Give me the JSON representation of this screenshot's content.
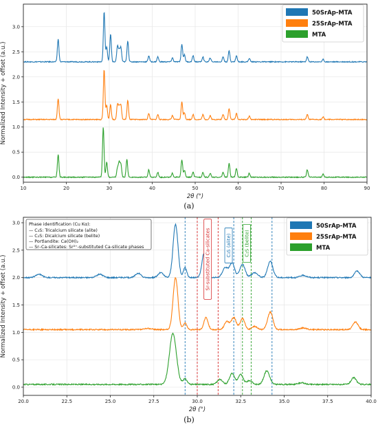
{
  "captions": {
    "a": "(a)",
    "b": "(b)"
  },
  "colors": {
    "s50": "#1f77b4",
    "s25": "#ff7f0e",
    "mta": "#2ca02c",
    "sr": "#d62728"
  },
  "chart_data": [
    {
      "type": "line",
      "panel": "(a)",
      "xlabel": "2θ (°)",
      "ylabel": "Normalized Intensity + offset (a.u.)",
      "xlim": [
        10,
        90
      ],
      "ylim": [
        -0.1,
        3.45
      ],
      "xticks": [
        10,
        20,
        30,
        40,
        50,
        60,
        70,
        80,
        90
      ],
      "yticks": [
        0.0,
        0.5,
        1.0,
        1.5,
        2.0,
        2.5,
        3.0
      ],
      "grid": true,
      "legend": {
        "placement": "top-right",
        "entries": [
          "50SrAp-MTA",
          "25SrAp-MTA",
          "MTA"
        ]
      },
      "series": [
        {
          "name": "50SrAp-MTA",
          "color": "#1f77b4",
          "offset": 2.3,
          "peaks": [
            [
              18.1,
              0.45
            ],
            [
              28.8,
              1.0
            ],
            [
              29.4,
              0.3
            ],
            [
              30.3,
              0.55
            ],
            [
              31.9,
              0.3
            ],
            [
              32.3,
              0.22
            ],
            [
              32.7,
              0.28
            ],
            [
              34.3,
              0.42
            ],
            [
              39.2,
              0.12
            ],
            [
              41.3,
              0.1
            ],
            [
              44.7,
              0.08
            ],
            [
              46.9,
              0.35
            ],
            [
              47.5,
              0.14
            ],
            [
              49.5,
              0.12
            ],
            [
              51.8,
              0.1
            ],
            [
              53.5,
              0.08
            ],
            [
              56.5,
              0.1
            ],
            [
              57.9,
              0.22
            ],
            [
              59.6,
              0.12
            ],
            [
              62.6,
              0.07
            ],
            [
              76.1,
              0.1
            ],
            [
              79.8,
              0.05
            ]
          ]
        },
        {
          "name": "25SrAp-MTA",
          "color": "#ff7f0e",
          "offset": 1.15,
          "peaks": [
            [
              18.1,
              0.42
            ],
            [
              28.8,
              1.0
            ],
            [
              29.4,
              0.28
            ],
            [
              30.3,
              0.3
            ],
            [
              31.9,
              0.3
            ],
            [
              32.3,
              0.25
            ],
            [
              32.7,
              0.28
            ],
            [
              34.3,
              0.38
            ],
            [
              39.2,
              0.12
            ],
            [
              41.3,
              0.1
            ],
            [
              44.7,
              0.08
            ],
            [
              46.9,
              0.35
            ],
            [
              47.5,
              0.14
            ],
            [
              49.5,
              0.1
            ],
            [
              51.8,
              0.1
            ],
            [
              53.5,
              0.08
            ],
            [
              56.5,
              0.1
            ],
            [
              57.9,
              0.22
            ],
            [
              59.6,
              0.12
            ],
            [
              62.6,
              0.07
            ],
            [
              76.1,
              0.1
            ],
            [
              79.8,
              0.05
            ]
          ]
        },
        {
          "name": "MTA",
          "color": "#2ca02c",
          "offset": 0.0,
          "peaks": [
            [
              18.1,
              0.45
            ],
            [
              28.6,
              1.0
            ],
            [
              29.4,
              0.3
            ],
            [
              31.9,
              0.18
            ],
            [
              32.3,
              0.28
            ],
            [
              32.7,
              0.26
            ],
            [
              34.1,
              0.35
            ],
            [
              39.2,
              0.15
            ],
            [
              41.3,
              0.1
            ],
            [
              44.7,
              0.08
            ],
            [
              46.9,
              0.35
            ],
            [
              47.5,
              0.14
            ],
            [
              49.5,
              0.1
            ],
            [
              51.8,
              0.1
            ],
            [
              53.5,
              0.08
            ],
            [
              56.5,
              0.1
            ],
            [
              57.9,
              0.28
            ],
            [
              59.6,
              0.18
            ],
            [
              62.6,
              0.08
            ],
            [
              76.1,
              0.15
            ],
            [
              79.8,
              0.06
            ]
          ]
        }
      ]
    },
    {
      "type": "line",
      "panel": "(b)",
      "xlabel": "2θ (°)",
      "ylabel": "Normalized Intensity + offset (a.u.)",
      "xlim": [
        20,
        40
      ],
      "ylim": [
        -0.15,
        3.1
      ],
      "xticks": [
        20.0,
        22.5,
        25.0,
        27.5,
        30.0,
        32.5,
        35.0,
        37.5,
        40.0
      ],
      "xtick_labels": [
        "20.0",
        "22.5",
        "25.0",
        "27.5",
        "30.0",
        "32.5",
        "35.0",
        "37.5",
        "40.0"
      ],
      "yticks": [
        0.0,
        0.5,
        1.0,
        1.5,
        2.0,
        2.5,
        3.0
      ],
      "ytick_labels": [
        "0.0",
        "0.5",
        "1.0",
        "1.5",
        "2.0",
        "2.5",
        "3.0"
      ],
      "grid": true,
      "legend": {
        "placement": "top-right",
        "entries": [
          "50SrAp-MTA",
          "25SrAp-MTA",
          "MTA"
        ]
      },
      "phase_box": {
        "title": "Phase identification (Cu Kα):",
        "lines": [
          "— C₃S: Tricalcium silicate (alite)",
          "— C₂S: Dicalcium silicate (belite)",
          "— Portlandite: Ca(OH)₂",
          "— Sr–Ca-silicates: Sr²⁺-substituted Ca-silicate phases"
        ]
      },
      "vlines": [
        {
          "x": 29.3,
          "color": "#1f77b4"
        },
        {
          "x": 30.0,
          "color": "#d62728"
        },
        {
          "x": 31.2,
          "color": "#d62728"
        },
        {
          "x": 32.1,
          "color": "#1f77b4"
        },
        {
          "x": 32.6,
          "color": "#2ca02c"
        },
        {
          "x": 33.1,
          "color": "#2ca02c"
        },
        {
          "x": 34.3,
          "color": "#1f77b4"
        }
      ],
      "annotations": [
        {
          "text": "Sr-substituted Ca-silicates",
          "x": 30.6,
          "color": "#d62728"
        },
        {
          "text": "C₃S (alite)",
          "x": 31.8,
          "color": "#1f77b4"
        },
        {
          "text": "C₂S (belite)",
          "x": 32.85,
          "color": "#2ca02c"
        }
      ],
      "series": [
        {
          "name": "50SrAp-MTA",
          "color": "#1f77b4",
          "offset": 2.0,
          "peaks": [
            [
              20.9,
              0.06,
              0.18
            ],
            [
              24.4,
              0.06,
              0.18
            ],
            [
              26.6,
              0.08,
              0.15
            ],
            [
              27.9,
              0.09,
              0.15
            ],
            [
              28.75,
              0.97,
              0.14
            ],
            [
              29.3,
              0.18,
              0.1
            ],
            [
              30.4,
              0.45,
              0.13
            ],
            [
              31.6,
              0.18,
              0.15
            ],
            [
              32.0,
              0.26,
              0.15
            ],
            [
              32.6,
              0.24,
              0.15
            ],
            [
              33.3,
              0.09,
              0.18
            ],
            [
              34.2,
              0.3,
              0.15
            ],
            [
              36.1,
              0.04,
              0.18
            ],
            [
              39.2,
              0.12,
              0.15
            ]
          ]
        },
        {
          "name": "25SrAp-MTA",
          "color": "#ff7f0e",
          "offset": 1.05,
          "peaks": [
            [
              27.2,
              0.02,
              0.2
            ],
            [
              28.75,
              0.95,
              0.14
            ],
            [
              29.3,
              0.12,
              0.1
            ],
            [
              30.5,
              0.22,
              0.12
            ],
            [
              31.7,
              0.15,
              0.14
            ],
            [
              32.1,
              0.22,
              0.14
            ],
            [
              32.6,
              0.2,
              0.14
            ],
            [
              33.3,
              0.06,
              0.15
            ],
            [
              34.2,
              0.32,
              0.15
            ],
            [
              36.1,
              0.03,
              0.18
            ],
            [
              39.1,
              0.14,
              0.15
            ]
          ]
        },
        {
          "name": "MTA",
          "color": "#2ca02c",
          "offset": 0.05,
          "peaks": [
            [
              28.6,
              0.93,
              0.2
            ],
            [
              29.3,
              0.1,
              0.12
            ],
            [
              31.3,
              0.09,
              0.15
            ],
            [
              32.0,
              0.2,
              0.15
            ],
            [
              32.5,
              0.18,
              0.14
            ],
            [
              33.0,
              0.07,
              0.15
            ],
            [
              34.0,
              0.25,
              0.16
            ],
            [
              36.0,
              0.03,
              0.18
            ],
            [
              39.0,
              0.12,
              0.15
            ]
          ]
        }
      ]
    }
  ]
}
